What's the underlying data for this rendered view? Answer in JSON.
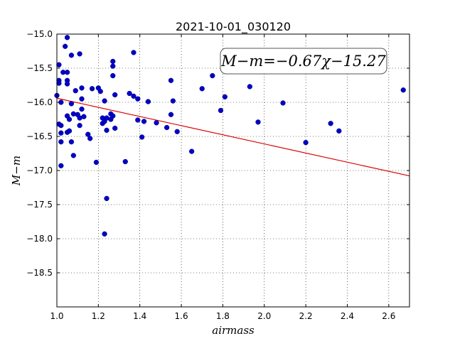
{
  "chart_data": {
    "type": "scatter",
    "title": "2021-10-01_030120",
    "xlabel": "airmass",
    "ylabel": "M−m",
    "xlim": [
      1.0,
      2.7
    ],
    "ylim": [
      -19.0,
      -15.0
    ],
    "y_inverted": true,
    "grid": true,
    "x_ticks": [
      1.0,
      1.2,
      1.4,
      1.6,
      1.8,
      2.0,
      2.2,
      2.4,
      2.6
    ],
    "x_tick_labels": [
      "1.0",
      "1.2",
      "1.4",
      "1.6",
      "1.8",
      "2.0",
      "2.2",
      "2.4",
      "2.6"
    ],
    "y_ticks": [
      -15.0,
      -15.5,
      -16.0,
      -16.5,
      -17.0,
      -17.5,
      -18.0,
      -18.5
    ],
    "y_tick_labels": [
      "−15.0",
      "−15.5",
      "−16.0",
      "−16.5",
      "−17.0",
      "−17.5",
      "−18.0",
      "−18.5"
    ],
    "annotation": "M−m=−0.67χ−15.27",
    "point_color": "#0000cc",
    "fit_color": "#dd0000",
    "fit": {
      "slope": -0.67,
      "intercept": -15.27
    },
    "points": [
      {
        "x": 1.0,
        "y": -15.9
      },
      {
        "x": 1.01,
        "y": -15.68
      },
      {
        "x": 1.01,
        "y": -15.72
      },
      {
        "x": 1.01,
        "y": -16.32
      },
      {
        "x": 1.02,
        "y": -16.34
      },
      {
        "x": 1.02,
        "y": -16.45
      },
      {
        "x": 1.02,
        "y": -16.58
      },
      {
        "x": 1.01,
        "y": -15.45
      },
      {
        "x": 1.02,
        "y": -16.93
      },
      {
        "x": 1.02,
        "y": -16.0
      },
      {
        "x": 1.03,
        "y": -15.56
      },
      {
        "x": 1.04,
        "y": -15.18
      },
      {
        "x": 1.05,
        "y": -15.05
      },
      {
        "x": 1.05,
        "y": -15.56
      },
      {
        "x": 1.05,
        "y": -15.68
      },
      {
        "x": 1.05,
        "y": -15.73
      },
      {
        "x": 1.05,
        "y": -16.2
      },
      {
        "x": 1.05,
        "y": -16.44
      },
      {
        "x": 1.06,
        "y": -16.25
      },
      {
        "x": 1.06,
        "y": -16.42
      },
      {
        "x": 1.07,
        "y": -15.31
      },
      {
        "x": 1.07,
        "y": -16.02
      },
      {
        "x": 1.07,
        "y": -16.58
      },
      {
        "x": 1.08,
        "y": -16.17
      },
      {
        "x": 1.08,
        "y": -16.78
      },
      {
        "x": 1.09,
        "y": -15.83
      },
      {
        "x": 1.1,
        "y": -16.18
      },
      {
        "x": 1.11,
        "y": -15.29
      },
      {
        "x": 1.11,
        "y": -16.23
      },
      {
        "x": 1.11,
        "y": -16.34
      },
      {
        "x": 1.12,
        "y": -15.79
      },
      {
        "x": 1.12,
        "y": -15.95
      },
      {
        "x": 1.12,
        "y": -16.1
      },
      {
        "x": 1.13,
        "y": -16.21
      },
      {
        "x": 1.15,
        "y": -16.47
      },
      {
        "x": 1.16,
        "y": -16.53
      },
      {
        "x": 1.17,
        "y": -15.8
      },
      {
        "x": 1.19,
        "y": -16.88
      },
      {
        "x": 1.2,
        "y": -15.79
      },
      {
        "x": 1.21,
        "y": -15.84
      },
      {
        "x": 1.22,
        "y": -16.23
      },
      {
        "x": 1.22,
        "y": -16.31
      },
      {
        "x": 1.23,
        "y": -15.98
      },
      {
        "x": 1.23,
        "y": -16.28
      },
      {
        "x": 1.24,
        "y": -16.41
      },
      {
        "x": 1.24,
        "y": -16.23
      },
      {
        "x": 1.26,
        "y": -16.17
      },
      {
        "x": 1.26,
        "y": -16.25
      },
      {
        "x": 1.27,
        "y": -15.4
      },
      {
        "x": 1.27,
        "y": -15.47
      },
      {
        "x": 1.27,
        "y": -15.61
      },
      {
        "x": 1.27,
        "y": -16.2
      },
      {
        "x": 1.28,
        "y": -15.89
      },
      {
        "x": 1.28,
        "y": -16.38
      },
      {
        "x": 1.24,
        "y": -17.41
      },
      {
        "x": 1.23,
        "y": -17.93
      },
      {
        "x": 1.33,
        "y": -16.87
      },
      {
        "x": 1.35,
        "y": -15.87
      },
      {
        "x": 1.37,
        "y": -15.27
      },
      {
        "x": 1.37,
        "y": -15.91
      },
      {
        "x": 1.39,
        "y": -15.95
      },
      {
        "x": 1.39,
        "y": -16.26
      },
      {
        "x": 1.41,
        "y": -16.51
      },
      {
        "x": 1.42,
        "y": -16.28
      },
      {
        "x": 1.44,
        "y": -15.99
      },
      {
        "x": 1.48,
        "y": -16.3
      },
      {
        "x": 1.53,
        "y": -16.37
      },
      {
        "x": 1.55,
        "y": -15.68
      },
      {
        "x": 1.55,
        "y": -16.18
      },
      {
        "x": 1.56,
        "y": -15.98
      },
      {
        "x": 1.58,
        "y": -16.43
      },
      {
        "x": 1.65,
        "y": -16.72
      },
      {
        "x": 1.7,
        "y": -15.8
      },
      {
        "x": 1.75,
        "y": -15.61
      },
      {
        "x": 1.79,
        "y": -16.12
      },
      {
        "x": 1.81,
        "y": -15.92
      },
      {
        "x": 1.93,
        "y": -15.77
      },
      {
        "x": 1.97,
        "y": -16.29
      },
      {
        "x": 2.09,
        "y": -16.01
      },
      {
        "x": 2.2,
        "y": -16.59
      },
      {
        "x": 2.32,
        "y": -16.31
      },
      {
        "x": 2.36,
        "y": -16.42
      },
      {
        "x": 2.67,
        "y": -15.82
      }
    ]
  }
}
